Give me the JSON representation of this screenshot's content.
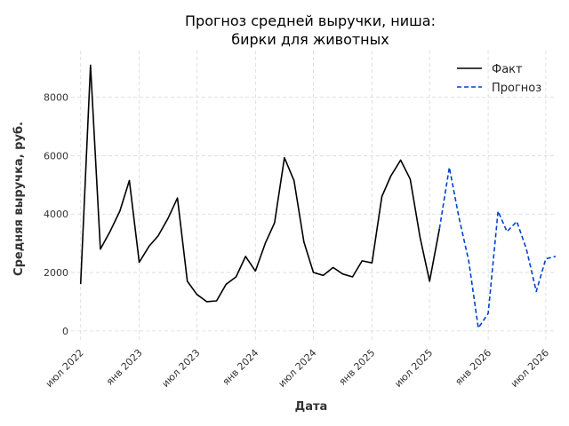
{
  "chart_data": {
    "type": "line",
    "title_lines": [
      "Прогноз средней выручки, ниша:",
      "бирки для животных"
    ],
    "xlabel": "Дата",
    "ylabel": "Средняя выручка, руб.",
    "xlim": [
      "2022-06-01",
      "2026-08-01"
    ],
    "ylim": [
      -400,
      9600
    ],
    "x_ticks": [
      {
        "date": "2022-07-01",
        "label": "июл 2022"
      },
      {
        "date": "2023-01-01",
        "label": "янв 2023"
      },
      {
        "date": "2023-07-01",
        "label": "июл 2023"
      },
      {
        "date": "2024-01-01",
        "label": "янв 2024"
      },
      {
        "date": "2024-07-01",
        "label": "июл 2024"
      },
      {
        "date": "2025-01-01",
        "label": "янв 2025"
      },
      {
        "date": "2025-07-01",
        "label": "июл 2025"
      },
      {
        "date": "2026-01-01",
        "label": "янв 2026"
      },
      {
        "date": "2026-07-01",
        "label": "июл 2026"
      }
    ],
    "y_ticks": [
      0,
      2000,
      4000,
      6000,
      8000
    ],
    "grid": true,
    "legend_position": "top-right",
    "series": [
      {
        "name": "Факт",
        "color": "#000000",
        "style": "solid",
        "points": [
          [
            "2022-07-01",
            1600
          ],
          [
            "2022-08-01",
            9100
          ],
          [
            "2022-09-01",
            2800
          ],
          [
            "2022-10-01",
            3400
          ],
          [
            "2022-11-01",
            4100
          ],
          [
            "2022-12-01",
            5150
          ],
          [
            "2023-01-01",
            2350
          ],
          [
            "2023-02-01",
            2900
          ],
          [
            "2023-03-01",
            3250
          ],
          [
            "2023-04-01",
            3850
          ],
          [
            "2023-05-01",
            4550
          ],
          [
            "2023-06-01",
            1700
          ],
          [
            "2023-07-01",
            1250
          ],
          [
            "2023-08-01",
            1000
          ],
          [
            "2023-09-01",
            1030
          ],
          [
            "2023-10-01",
            1600
          ],
          [
            "2023-11-01",
            1850
          ],
          [
            "2023-12-01",
            2550
          ],
          [
            "2024-01-01",
            2050
          ],
          [
            "2024-02-01",
            3000
          ],
          [
            "2024-03-01",
            3700
          ],
          [
            "2024-04-01",
            5930
          ],
          [
            "2024-05-01",
            5150
          ],
          [
            "2024-06-01",
            3050
          ],
          [
            "2024-07-01",
            2000
          ],
          [
            "2024-08-01",
            1900
          ],
          [
            "2024-09-01",
            2170
          ],
          [
            "2024-10-01",
            1950
          ],
          [
            "2024-11-01",
            1850
          ],
          [
            "2024-12-01",
            2400
          ],
          [
            "2025-01-01",
            2330
          ],
          [
            "2025-02-01",
            4600
          ],
          [
            "2025-03-01",
            5300
          ],
          [
            "2025-04-01",
            5850
          ],
          [
            "2025-05-01",
            5200
          ],
          [
            "2025-06-01",
            3200
          ],
          [
            "2025-07-01",
            1700
          ],
          [
            "2025-08-01",
            3500
          ]
        ]
      },
      {
        "name": "Прогноз",
        "color": "#0044cc",
        "style": "dashed",
        "points": [
          [
            "2025-08-01",
            3500
          ],
          [
            "2025-09-01",
            5600
          ],
          [
            "2025-10-01",
            3900
          ],
          [
            "2025-11-01",
            2400
          ],
          [
            "2025-12-01",
            100
          ],
          [
            "2026-01-01",
            600
          ],
          [
            "2026-02-01",
            4100
          ],
          [
            "2026-03-01",
            3400
          ],
          [
            "2026-04-01",
            3750
          ],
          [
            "2026-05-01",
            2800
          ],
          [
            "2026-06-01",
            1350
          ],
          [
            "2026-07-01",
            2470
          ],
          [
            "2026-08-01",
            2550
          ]
        ]
      }
    ]
  }
}
